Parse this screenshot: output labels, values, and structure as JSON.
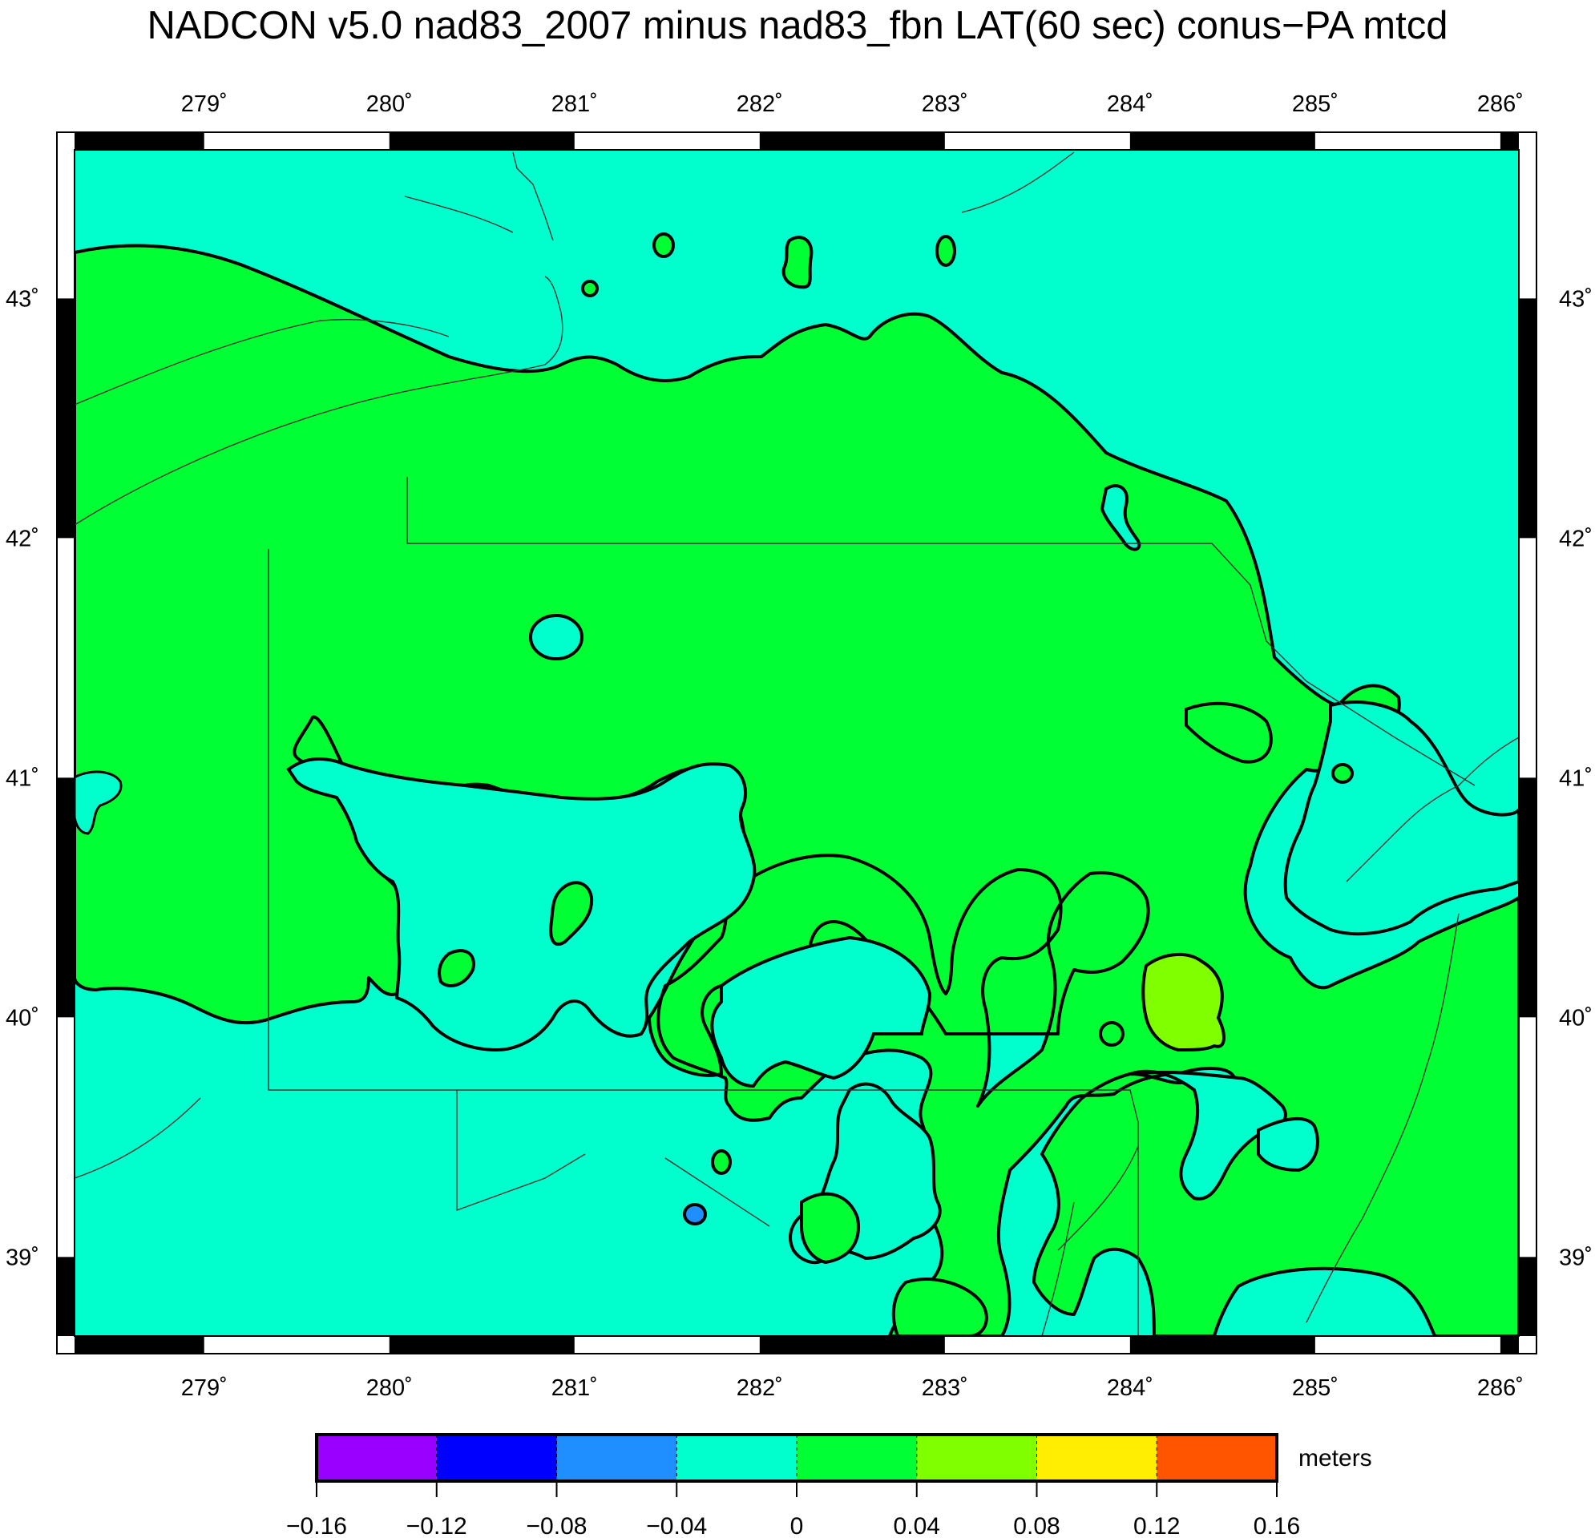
{
  "title": "NADCON v5.0 nad83_2007 minus nad83_fbn LAT(60 sec) conus−PA mtcd",
  "map": {
    "lon_range": [
      278.3,
      286.1
    ],
    "lat_range": [
      38.67,
      43.62
    ],
    "lon_ticks": [
      {
        "value": 279,
        "label": "279˚"
      },
      {
        "value": 280,
        "label": "280˚"
      },
      {
        "value": 281,
        "label": "281˚"
      },
      {
        "value": 282,
        "label": "282˚"
      },
      {
        "value": 283,
        "label": "283˚"
      },
      {
        "value": 284,
        "label": "284˚"
      },
      {
        "value": 285,
        "label": "285˚"
      },
      {
        "value": 286,
        "label": "286˚"
      }
    ],
    "lat_ticks": [
      {
        "value": 39,
        "label": "39˚"
      },
      {
        "value": 40,
        "label": "40˚"
      },
      {
        "value": 41,
        "label": "41˚"
      },
      {
        "value": 42,
        "label": "42˚"
      },
      {
        "value": 43,
        "label": "43˚"
      }
    ],
    "background_level_color": "#00ffcc",
    "contour_fill_colors": {
      "-0.08_to_-0.04": "#1f8fff",
      "-0.04_to_0": "#00ffcc",
      "0_to_0.04": "#00ff33",
      "0.04_to_0.08": "#80ff00"
    }
  },
  "colorbar": {
    "units": "meters",
    "bins": [
      {
        "from": -0.16,
        "to": -0.12,
        "color": "#9900ff"
      },
      {
        "from": -0.12,
        "to": -0.08,
        "color": "#0000ff"
      },
      {
        "from": -0.08,
        "to": -0.04,
        "color": "#1f8fff"
      },
      {
        "from": -0.04,
        "to": 0,
        "color": "#00ffcc"
      },
      {
        "from": 0,
        "to": 0.04,
        "color": "#00ff33"
      },
      {
        "from": 0.04,
        "to": 0.08,
        "color": "#80ff00"
      },
      {
        "from": 0.08,
        "to": 0.12,
        "color": "#ffee00"
      },
      {
        "from": 0.12,
        "to": 0.16,
        "color": "#ff5500"
      }
    ],
    "tick_labels": [
      "−0.16",
      "−0.12",
      "−0.08",
      "−0.04",
      "0",
      "0.04",
      "0.08",
      "0.12",
      "0.16"
    ]
  }
}
